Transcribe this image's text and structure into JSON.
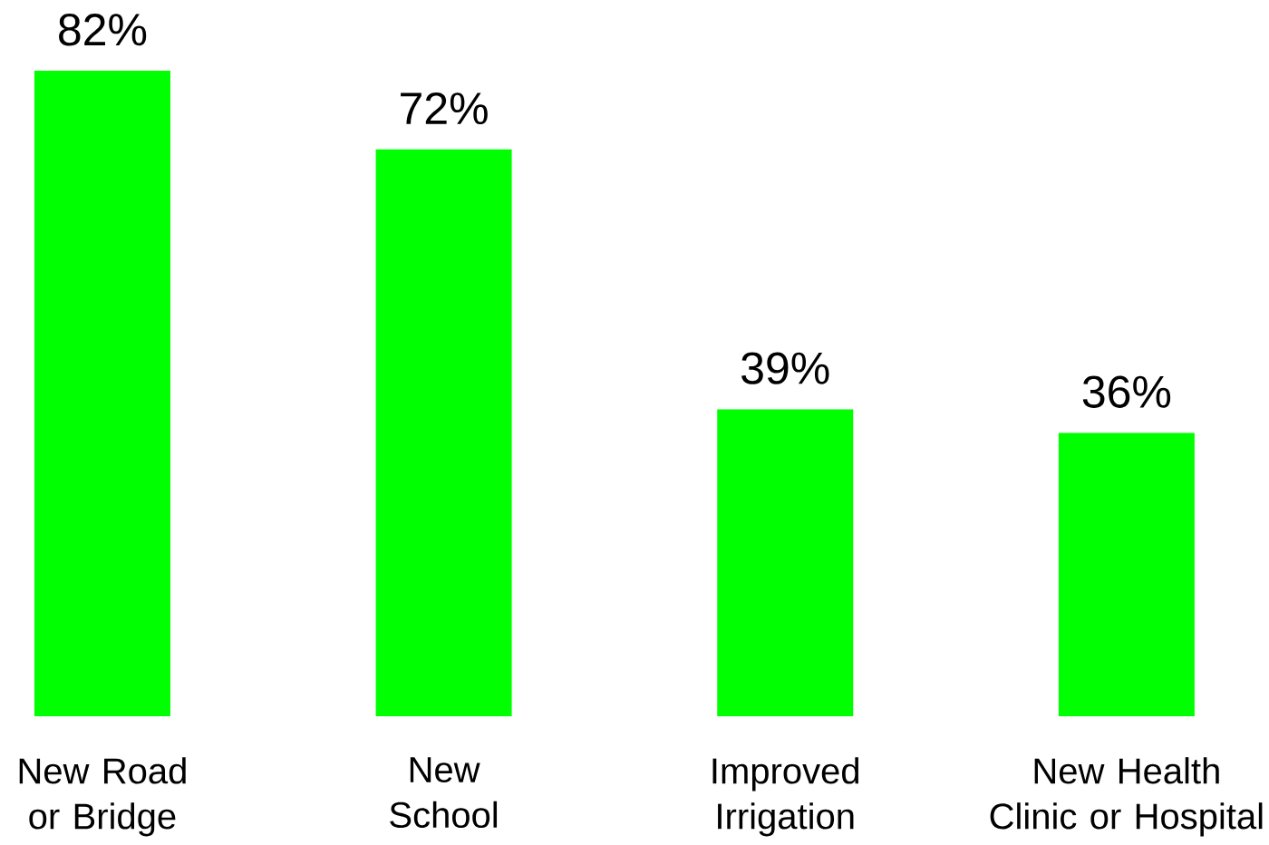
{
  "chart_data": {
    "type": "bar",
    "categories": [
      "New Road\nor Bridge",
      "New\nSchool",
      "Improved\nIrrigation",
      "New Health\nClinic or Hospital"
    ],
    "values": [
      82,
      72,
      39,
      36
    ],
    "value_labels": [
      "82%",
      "72%",
      "39%",
      "36%"
    ],
    "color": "#00ff00",
    "tick_labels": "x"
  }
}
